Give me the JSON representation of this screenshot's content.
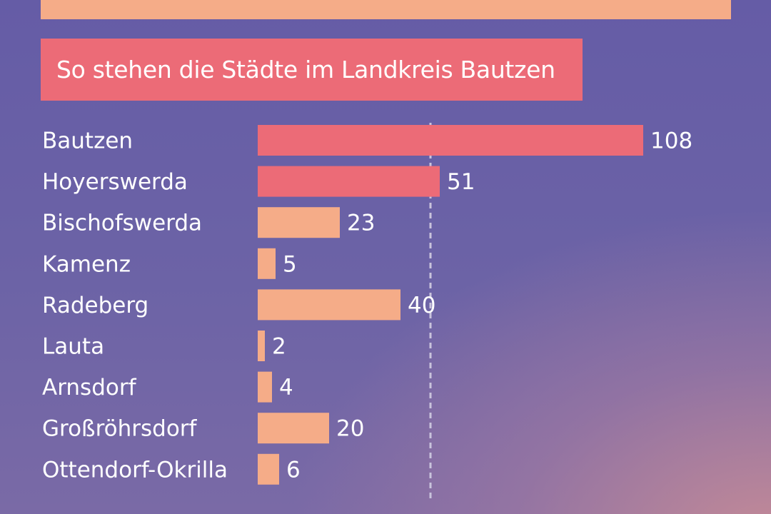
{
  "title": "So stehen die Städte im Landkreis Bautzen",
  "colors": {
    "highlight_bar": "#ec6b77",
    "normal_bar": "#f5ac88",
    "reference_line": "#c9c3dc",
    "text": "#ffffff"
  },
  "chart_data": {
    "type": "bar",
    "orientation": "horizontal",
    "title": "So stehen die Städte im Landkreis Bautzen",
    "categories": [
      "Bautzen",
      "Hoyerswerda",
      "Bischofswerda",
      "Kamenz",
      "Radeberg",
      "Lauta",
      "Arnsdorf",
      "Großröhrsdorf",
      "Ottendorf-Okrilla"
    ],
    "values": [
      108,
      51,
      23,
      5,
      40,
      2,
      4,
      20,
      6
    ],
    "highlighted": [
      true,
      true,
      false,
      false,
      false,
      false,
      false,
      false,
      false
    ],
    "reference_line": {
      "value": 48,
      "style": "dashed"
    },
    "xlim": [
      0,
      108
    ],
    "grid": false,
    "legend": false
  }
}
